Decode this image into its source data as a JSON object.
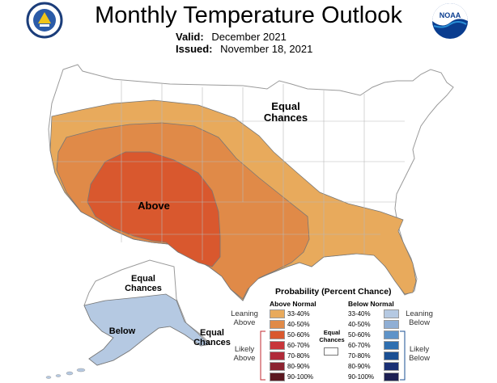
{
  "header": {
    "title": "Monthly Temperature Outlook",
    "valid_label": "Valid:",
    "valid_value": "December 2021",
    "issued_label": "Issued:",
    "issued_value": "November 18, 2021"
  },
  "logos": {
    "left": "doc-seal-icon",
    "right": "noaa-logo-icon",
    "noaa_text": "NOAA"
  },
  "regions": {
    "conus_equal": "Equal Chances",
    "conus_above": "Above",
    "alaska_equal_north": "Equal Chances",
    "alaska_below": "Below",
    "alaska_equal_south": "Equal Chances"
  },
  "colors": {
    "above_33_40": "#e8aa5c",
    "above_40_50": "#e08a48",
    "above_50_60": "#d9582e",
    "below_33_40": "#b5c9e2",
    "equal": "#ffffff"
  },
  "legend": {
    "title": "Probability (Percent Chance)",
    "above_header": "Above Normal",
    "below_header": "Below Normal",
    "leaning_above": "Leaning Above",
    "likely_above": "Likely Above",
    "leaning_below": "Leaning Below",
    "likely_below": "Likely Below",
    "equal_chances": "Equal Chances",
    "above_bins": [
      {
        "label": "33-40%",
        "color": "#e8aa5c"
      },
      {
        "label": "40-50%",
        "color": "#e08a48"
      },
      {
        "label": "50-60%",
        "color": "#d9582e"
      },
      {
        "label": "60-70%",
        "color": "#c8353a"
      },
      {
        "label": "70-80%",
        "color": "#b02a39"
      },
      {
        "label": "80-90%",
        "color": "#8c2330"
      },
      {
        "label": "90-100%",
        "color": "#5a1820"
      }
    ],
    "below_bins": [
      {
        "label": "33-40%",
        "color": "#b5c9e2"
      },
      {
        "label": "40-50%",
        "color": "#8faed4"
      },
      {
        "label": "50-60%",
        "color": "#5e93c8"
      },
      {
        "label": "60-70%",
        "color": "#2f6fb0"
      },
      {
        "label": "70-80%",
        "color": "#1a4f93"
      },
      {
        "label": "80-90%",
        "color": "#1a2f74"
      },
      {
        "label": "90-100%",
        "color": "#1c1f52"
      }
    ]
  }
}
